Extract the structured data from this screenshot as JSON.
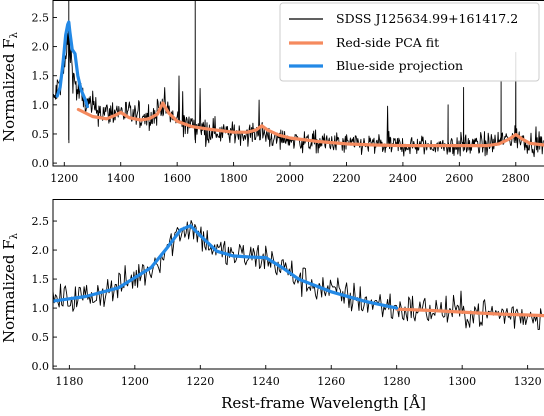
{
  "chart_data": [
    {
      "type": "line",
      "xlim": [
        1160,
        2900
      ],
      "ylim": [
        -0.05,
        2.8
      ],
      "xticks": [
        1200,
        1400,
        1600,
        1800,
        2000,
        2200,
        2400,
        2600,
        2800
      ],
      "yticks": [
        0.0,
        0.5,
        1.0,
        1.5,
        2.0,
        2.5
      ],
      "xlabel": "",
      "ylabel": "Normalized Fλ",
      "grid": false,
      "legend_position": "top-right",
      "legend": [
        "SDSS J125634.99+161417.2",
        "Red-side PCA fit",
        "Blue-side projection"
      ],
      "series": [
        {
          "name": "SDSS J125634.99+161417.2",
          "color": "#000000",
          "style": "noisy-spectrum",
          "baseline": [
            [
              1160,
              1.05
            ],
            [
              1200,
              1.6
            ],
            [
              1215,
              2.2
            ],
            [
              1225,
              1.8
            ],
            [
              1240,
              1.3
            ],
            [
              1280,
              1.0
            ],
            [
              1350,
              0.85
            ],
            [
              1400,
              0.9
            ],
            [
              1450,
              0.8
            ],
            [
              1520,
              0.82
            ],
            [
              1549,
              1.05
            ],
            [
              1580,
              0.78
            ],
            [
              1650,
              0.65
            ],
            [
              1700,
              0.58
            ],
            [
              1800,
              0.5
            ],
            [
              1900,
              0.52
            ],
            [
              1950,
              0.42
            ],
            [
              2100,
              0.35
            ],
            [
              2400,
              0.3
            ],
            [
              2600,
              0.3
            ],
            [
              2700,
              0.32
            ],
            [
              2798,
              0.45
            ],
            [
              2850,
              0.35
            ],
            [
              2900,
              0.32
            ]
          ],
          "features": [
            {
              "x": 1216,
              "y": 2.8,
              "label": ""
            },
            {
              "x": 1664,
              "y": 2.9,
              "label": ""
            },
            {
              "x": 2560,
              "y": 1.0,
              "label": ""
            },
            {
              "x": 2615,
              "y": 1.3,
              "label": ""
            },
            {
              "x": 2748,
              "y": 1.4,
              "label": ""
            },
            {
              "x": 2800,
              "y": 1.9,
              "label": ""
            }
          ]
        },
        {
          "name": "Red-side PCA fit",
          "color": "#f58a5e",
          "x": [
            1250,
            1300,
            1350,
            1380,
            1400,
            1430,
            1470,
            1500,
            1530,
            1549,
            1570,
            1600,
            1650,
            1700,
            1750,
            1800,
            1850,
            1880,
            1900,
            1920,
            1960,
            2000,
            2100,
            2200,
            2300,
            2400,
            2500,
            2600,
            2700,
            2740,
            2780,
            2800,
            2820,
            2850,
            2900
          ],
          "y": [
            0.92,
            0.8,
            0.76,
            0.82,
            0.87,
            0.78,
            0.74,
            0.76,
            0.84,
            1.03,
            0.86,
            0.72,
            0.63,
            0.59,
            0.56,
            0.53,
            0.53,
            0.57,
            0.64,
            0.57,
            0.48,
            0.43,
            0.37,
            0.33,
            0.31,
            0.3,
            0.3,
            0.3,
            0.3,
            0.33,
            0.42,
            0.49,
            0.42,
            0.34,
            0.31
          ]
        },
        {
          "name": "Blue-side projection",
          "color": "#2389e6",
          "x": [
            1175,
            1185,
            1195,
            1205,
            1212,
            1216,
            1220,
            1228,
            1238,
            1248,
            1260,
            1275,
            1282
          ],
          "y": [
            1.15,
            1.3,
            1.7,
            2.2,
            2.38,
            2.42,
            2.25,
            1.95,
            1.88,
            1.5,
            1.25,
            1.08,
            0.97
          ]
        }
      ]
    },
    {
      "type": "line",
      "xlim": [
        1175,
        1325
      ],
      "ylim": [
        -0.05,
        2.88
      ],
      "xticks": [
        1180,
        1200,
        1220,
        1240,
        1260,
        1280,
        1300,
        1320
      ],
      "yticks": [
        0.0,
        0.5,
        1.0,
        1.5,
        2.0,
        2.5
      ],
      "xlabel": "Rest-frame Wavelength [Å]",
      "ylabel": "Normalized Fλ",
      "grid": false,
      "series": [
        {
          "name": "SDSS J125634.99+161417.2",
          "color": "#000000",
          "style": "noisy-spectrum"
        },
        {
          "name": "Red-side PCA fit",
          "color": "#f58a5e",
          "x": [
            1280,
            1290,
            1300,
            1310,
            1320,
            1325
          ],
          "y": [
            0.98,
            0.96,
            0.93,
            0.9,
            0.88,
            0.87
          ]
        },
        {
          "name": "Blue-side projection",
          "color": "#2389e6",
          "x": [
            1175,
            1185,
            1195,
            1205,
            1210,
            1214,
            1217,
            1220,
            1225,
            1230,
            1235,
            1240,
            1245,
            1250,
            1260,
            1270,
            1280
          ],
          "y": [
            1.12,
            1.2,
            1.35,
            1.7,
            2.05,
            2.35,
            2.42,
            2.25,
            1.98,
            1.9,
            1.88,
            1.87,
            1.7,
            1.5,
            1.28,
            1.12,
            1.0
          ]
        }
      ]
    }
  ]
}
